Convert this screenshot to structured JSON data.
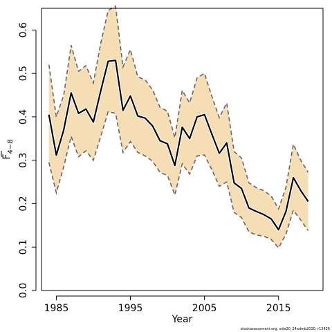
{
  "chart_data": {
    "type": "line",
    "xlabel": "Year",
    "ylabel_base": "F",
    "ylabel_sub": "4−8",
    "xlim": [
      1983,
      2021
    ],
    "ylim": [
      0,
      0.65
    ],
    "x_ticks": [
      1985,
      1995,
      2005,
      2015
    ],
    "y_ticks": [
      0.0,
      0.1,
      0.2,
      0.3,
      0.4,
      0.5,
      0.6
    ],
    "y_tick_labels": [
      "0.0",
      "0.1",
      "0.2",
      "0.3",
      "0.4",
      "0.5",
      "0.6"
    ],
    "x": [
      1984,
      1985,
      1986,
      1987,
      1988,
      1989,
      1990,
      1991,
      1992,
      1993,
      1994,
      1995,
      1996,
      1997,
      1998,
      1999,
      2000,
      2001,
      2002,
      2003,
      2004,
      2005,
      2006,
      2007,
      2008,
      2009,
      2010,
      2011,
      2012,
      2013,
      2014,
      2015,
      2016,
      2017,
      2018,
      2019
    ],
    "estimate": [
      0.405,
      0.312,
      0.37,
      0.455,
      0.408,
      0.418,
      0.388,
      0.46,
      0.528,
      0.53,
      0.415,
      0.448,
      0.402,
      0.397,
      0.379,
      0.345,
      0.338,
      0.288,
      0.376,
      0.35,
      0.4,
      0.405,
      0.36,
      0.316,
      0.34,
      0.248,
      0.235,
      0.19,
      0.182,
      0.175,
      0.165,
      0.14,
      0.182,
      0.26,
      0.23,
      0.205
    ],
    "upper": [
      0.52,
      0.4,
      0.45,
      0.565,
      0.505,
      0.518,
      0.478,
      0.57,
      0.645,
      0.655,
      0.515,
      0.555,
      0.492,
      0.485,
      0.462,
      0.422,
      0.413,
      0.352,
      0.461,
      0.432,
      0.49,
      0.5,
      0.447,
      0.398,
      0.432,
      0.32,
      0.305,
      0.248,
      0.237,
      0.23,
      0.218,
      0.188,
      0.238,
      0.337,
      0.3,
      0.272
    ],
    "lower": [
      0.295,
      0.225,
      0.285,
      0.355,
      0.308,
      0.322,
      0.3,
      0.355,
      0.412,
      0.408,
      0.318,
      0.343,
      0.318,
      0.31,
      0.298,
      0.272,
      0.265,
      0.22,
      0.292,
      0.268,
      0.31,
      0.312,
      0.278,
      0.24,
      0.25,
      0.18,
      0.168,
      0.135,
      0.128,
      0.125,
      0.118,
      0.098,
      0.13,
      0.185,
      0.162,
      0.138
    ],
    "band_color": "#f5deb3",
    "line_color": "#000000",
    "bound_color": "#666666",
    "grid": false
  },
  "credit_text": "stockassessment.org, sole20_24admb2020, r12426"
}
